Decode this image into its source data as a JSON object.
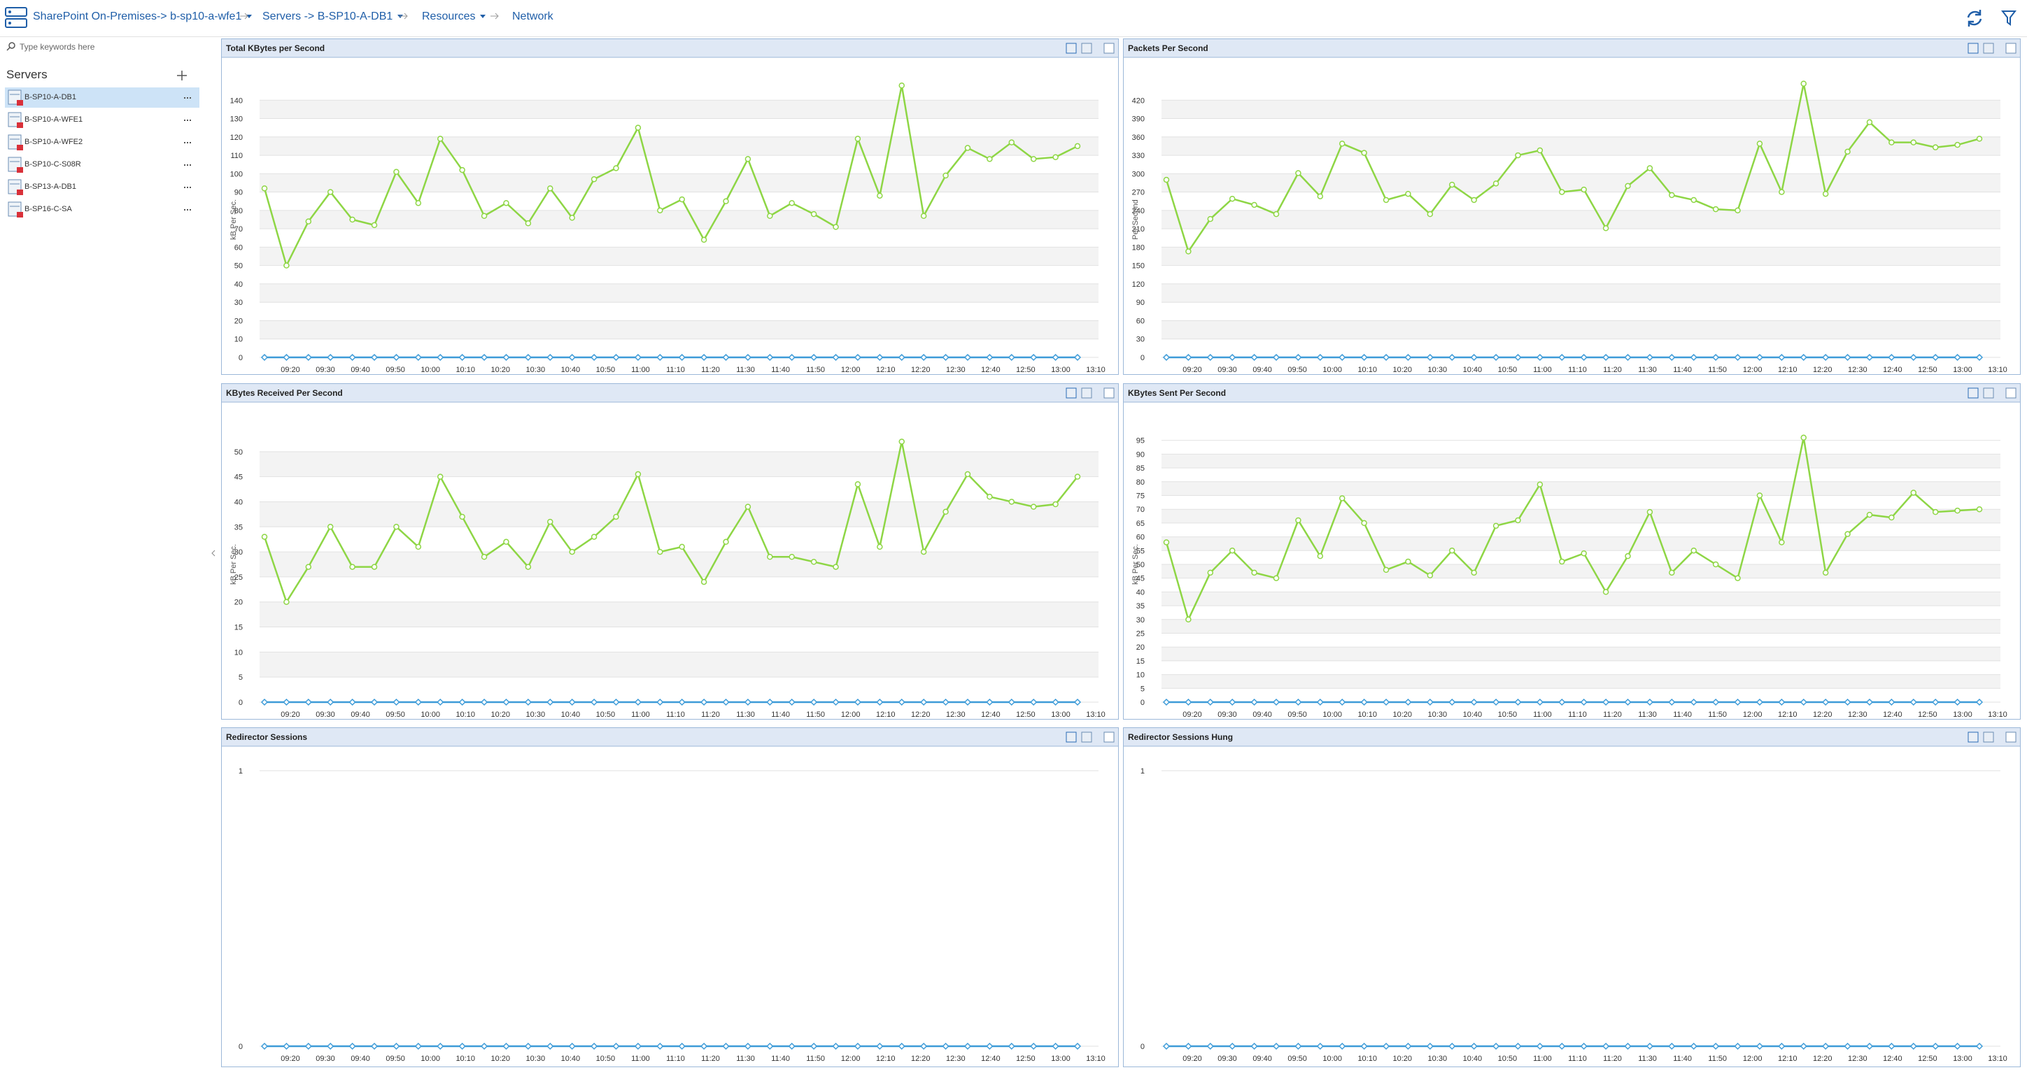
{
  "breadcrumb": [
    "SharePoint On-Premises-> b-sp10-a-wfe1",
    "Servers -> B-SP10-A-DB1",
    "Resources",
    "Network"
  ],
  "search_placeholder": "Type keywords here",
  "sidebar": {
    "title": "Servers",
    "items": [
      "B-SP10-A-DB1",
      "B-SP10-A-WFE1",
      "B-SP10-A-WFE2",
      "B-SP10-C-S08R",
      "B-SP13-A-DB1",
      "B-SP16-C-SA"
    ]
  },
  "chart_data": [
    {
      "type": "line",
      "title": "Total KBytes per Second",
      "y_label": "kB Per Sec.",
      "x_labels": [
        "09:20",
        "09:30",
        "09:40",
        "09:50",
        "10:00",
        "10:10",
        "10:20",
        "10:30",
        "10:40",
        "10:50",
        "11:00",
        "11:10",
        "11:20",
        "11:30",
        "11:40",
        "11:50",
        "12:00",
        "12:10",
        "12:20",
        "12:30",
        "12:40",
        "12:50",
        "13:00",
        "13:10"
      ],
      "ylim": [
        0,
        150
      ],
      "yticks": [
        0,
        10,
        20,
        30,
        40,
        50,
        60,
        70,
        80,
        90,
        100,
        110,
        120,
        130,
        140
      ],
      "series": [
        {
          "color": "#8ed645",
          "values": [
            92,
            50,
            74,
            90,
            75,
            72,
            101,
            84,
            119,
            102,
            77,
            84,
            73,
            92,
            76,
            97,
            103,
            125,
            80,
            86,
            64,
            85,
            108,
            77,
            84,
            78,
            71,
            119,
            88,
            148,
            77,
            99,
            114,
            108,
            117,
            108,
            109,
            115
          ]
        },
        {
          "color": "#3d9bd8",
          "values": [
            0,
            0,
            0,
            0,
            0,
            0,
            0,
            0,
            0,
            0,
            0,
            0,
            0,
            0,
            0,
            0,
            0,
            0,
            0,
            0,
            0,
            0,
            0,
            0,
            0,
            0,
            0,
            0,
            0,
            0,
            0,
            0,
            0,
            0,
            0,
            0,
            0,
            0
          ]
        }
      ]
    },
    {
      "type": "line",
      "title": "Packets Per Second",
      "y_label": "Per Second",
      "x_labels": [
        "09:20",
        "09:30",
        "09:40",
        "09:50",
        "10:00",
        "10:10",
        "10:20",
        "10:30",
        "10:40",
        "10:50",
        "11:00",
        "11:10",
        "11:20",
        "11:30",
        "11:40",
        "11:50",
        "12:00",
        "12:10",
        "12:20",
        "12:30",
        "12:40",
        "12:50",
        "13:00",
        "13:10"
      ],
      "ylim": [
        0,
        450
      ],
      "yticks": [
        0,
        30,
        60,
        90,
        120,
        150,
        180,
        210,
        240,
        270,
        300,
        330,
        360,
        390,
        420
      ],
      "series": [
        {
          "color": "#8ed645",
          "values": [
            290,
            173,
            226,
            259,
            249,
            234,
            301,
            263,
            349,
            334,
            257,
            267,
            234,
            282,
            257,
            284,
            330,
            338,
            270,
            274,
            211,
            280,
            309,
            265,
            257,
            242,
            240,
            349,
            270,
            447,
            267,
            336,
            384,
            351,
            351,
            343,
            347,
            357
          ]
        },
        {
          "color": "#3d9bd8",
          "values": [
            0,
            0,
            0,
            0,
            0,
            0,
            0,
            0,
            0,
            0,
            0,
            0,
            0,
            0,
            0,
            0,
            0,
            0,
            0,
            0,
            0,
            0,
            0,
            0,
            0,
            0,
            0,
            0,
            0,
            0,
            0,
            0,
            0,
            0,
            0,
            0,
            0,
            0
          ]
        }
      ]
    },
    {
      "type": "line",
      "title": "KBytes Received Per Second",
      "y_label": "kB Per Sec.",
      "x_labels": [
        "09:20",
        "09:30",
        "09:40",
        "09:50",
        "10:00",
        "10:10",
        "10:20",
        "10:30",
        "10:40",
        "10:50",
        "11:00",
        "11:10",
        "11:20",
        "11:30",
        "11:40",
        "11:50",
        "12:00",
        "12:10",
        "12:20",
        "12:30",
        "12:40",
        "12:50",
        "13:00",
        "13:10"
      ],
      "ylim": [
        0,
        55
      ],
      "yticks": [
        0,
        5,
        10,
        15,
        20,
        25,
        30,
        35,
        40,
        45,
        50
      ],
      "series": [
        {
          "color": "#8ed645",
          "values": [
            33,
            20,
            27,
            35,
            27,
            27,
            35,
            31,
            45,
            37,
            29,
            32,
            27,
            36,
            30,
            33,
            37,
            45.5,
            30,
            31,
            24,
            32,
            39,
            29,
            29,
            28,
            27,
            43.5,
            31,
            52,
            30,
            38,
            45.5,
            41,
            40,
            39,
            39.5,
            45
          ]
        },
        {
          "color": "#3d9bd8",
          "values": [
            0,
            0,
            0,
            0,
            0,
            0,
            0,
            0,
            0,
            0,
            0,
            0,
            0,
            0,
            0,
            0,
            0,
            0,
            0,
            0,
            0,
            0,
            0,
            0,
            0,
            0,
            0,
            0,
            0,
            0,
            0,
            0,
            0,
            0,
            0,
            0,
            0,
            0
          ]
        }
      ]
    },
    {
      "type": "line",
      "title": "KBytes Sent Per Second",
      "y_label": "kB Per Sec.",
      "x_labels": [
        "09:20",
        "09:30",
        "09:40",
        "09:50",
        "10:00",
        "10:10",
        "10:20",
        "10:30",
        "10:40",
        "10:50",
        "11:00",
        "11:10",
        "11:20",
        "11:30",
        "11:40",
        "11:50",
        "12:00",
        "12:10",
        "12:20",
        "12:30",
        "12:40",
        "12:50",
        "13:00",
        "13:10"
      ],
      "ylim": [
        0,
        100
      ],
      "yticks": [
        0,
        5,
        10,
        15,
        20,
        25,
        30,
        35,
        40,
        45,
        50,
        55,
        60,
        65,
        70,
        75,
        80,
        85,
        90,
        95
      ],
      "series": [
        {
          "color": "#8ed645",
          "values": [
            58,
            30,
            47,
            55,
            47,
            45,
            66,
            53,
            74,
            65,
            48,
            51,
            46,
            55,
            47,
            64,
            66,
            79,
            51,
            54,
            40,
            53,
            69,
            47,
            55,
            50,
            45,
            75,
            58,
            96,
            47,
            61,
            68,
            67,
            76,
            69,
            69.5,
            70
          ]
        },
        {
          "color": "#3d9bd8",
          "values": [
            0,
            0,
            0,
            0,
            0,
            0,
            0,
            0,
            0,
            0,
            0,
            0,
            0,
            0,
            0,
            0,
            0,
            0,
            0,
            0,
            0,
            0,
            0,
            0,
            0,
            0,
            0,
            0,
            0,
            0,
            0,
            0,
            0,
            0,
            0,
            0,
            0,
            0
          ]
        }
      ]
    },
    {
      "type": "line",
      "title": "Redirector Sessions",
      "x_labels": [
        "09:20",
        "09:30",
        "09:40",
        "09:50",
        "10:00",
        "10:10",
        "10:20",
        "10:30",
        "10:40",
        "10:50",
        "11:00",
        "11:10",
        "11:20",
        "11:30",
        "11:40",
        "11:50",
        "12:00",
        "12:10",
        "12:20",
        "12:30",
        "12:40",
        "12:50",
        "13:00",
        "13:10"
      ],
      "ylim": [
        0,
        1
      ],
      "yticks": [
        0,
        1
      ],
      "series": [
        {
          "color": "#3d9bd8",
          "values": [
            0,
            0,
            0,
            0,
            0,
            0,
            0,
            0,
            0,
            0,
            0,
            0,
            0,
            0,
            0,
            0,
            0,
            0,
            0,
            0,
            0,
            0,
            0,
            0,
            0,
            0,
            0,
            0,
            0,
            0,
            0,
            0,
            0,
            0,
            0,
            0,
            0,
            0
          ]
        }
      ]
    },
    {
      "type": "line",
      "title": "Redirector Sessions Hung",
      "x_labels": [
        "09:20",
        "09:30",
        "09:40",
        "09:50",
        "10:00",
        "10:10",
        "10:20",
        "10:30",
        "10:40",
        "10:50",
        "11:00",
        "11:10",
        "11:20",
        "11:30",
        "11:40",
        "11:50",
        "12:00",
        "12:10",
        "12:20",
        "12:30",
        "12:40",
        "12:50",
        "13:00",
        "13:10"
      ],
      "ylim": [
        0,
        1
      ],
      "yticks": [
        0,
        1
      ],
      "series": [
        {
          "color": "#3d9bd8",
          "values": [
            0,
            0,
            0,
            0,
            0,
            0,
            0,
            0,
            0,
            0,
            0,
            0,
            0,
            0,
            0,
            0,
            0,
            0,
            0,
            0,
            0,
            0,
            0,
            0,
            0,
            0,
            0,
            0,
            0,
            0,
            0,
            0,
            0,
            0,
            0,
            0,
            0,
            0
          ]
        }
      ]
    }
  ]
}
